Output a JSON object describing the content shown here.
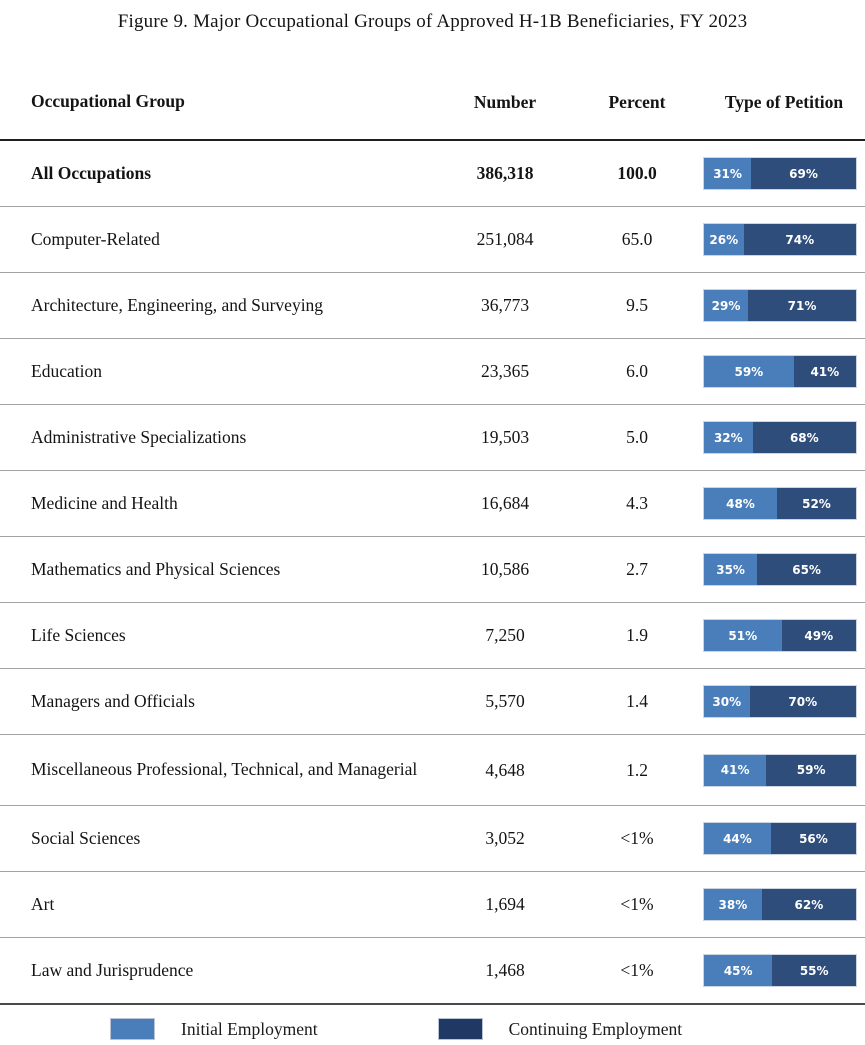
{
  "title": "Figure 9. Major Occupational Groups of Approved H-1B Beneficiaries, FY 2023",
  "table": {
    "headers": {
      "group": "Occupational Group",
      "number": "Number",
      "percent": "Percent",
      "petition": "Type of Petition"
    },
    "rows": [
      {
        "group": "All Occupations",
        "number": "386,318",
        "percent": "100.0",
        "initial": 31,
        "continuing": 69,
        "initial_label": "31%",
        "continuing_label": "69%",
        "bold": true
      },
      {
        "group": "Computer-Related",
        "number": "251,084",
        "percent": "65.0",
        "initial": 26,
        "continuing": 74,
        "initial_label": "26%",
        "continuing_label": "74%",
        "bold": false
      },
      {
        "group": "Architecture, Engineering, and Surveying",
        "number": "36,773",
        "percent": "9.5",
        "initial": 29,
        "continuing": 71,
        "initial_label": "29%",
        "continuing_label": "71%",
        "bold": false
      },
      {
        "group": "Education",
        "number": "23,365",
        "percent": "6.0",
        "initial": 59,
        "continuing": 41,
        "initial_label": "59%",
        "continuing_label": "41%",
        "bold": false
      },
      {
        "group": "Administrative Specializations",
        "number": "19,503",
        "percent": "5.0",
        "initial": 32,
        "continuing": 68,
        "initial_label": "32%",
        "continuing_label": "68%",
        "bold": false
      },
      {
        "group": "Medicine and Health",
        "number": "16,684",
        "percent": "4.3",
        "initial": 48,
        "continuing": 52,
        "initial_label": "48%",
        "continuing_label": "52%",
        "bold": false
      },
      {
        "group": "Mathematics and Physical Sciences",
        "number": "10,586",
        "percent": "2.7",
        "initial": 35,
        "continuing": 65,
        "initial_label": "35%",
        "continuing_label": "65%",
        "bold": false
      },
      {
        "group": "Life Sciences",
        "number": "7,250",
        "percent": "1.9",
        "initial": 51,
        "continuing": 49,
        "initial_label": "51%",
        "continuing_label": "49%",
        "bold": false
      },
      {
        "group": "Managers and Officials",
        "number": "5,570",
        "percent": "1.4",
        "initial": 30,
        "continuing": 70,
        "initial_label": "30%",
        "continuing_label": "70%",
        "bold": false
      },
      {
        "group": "Miscellaneous Professional, Technical, and Managerial",
        "number": "4,648",
        "percent": "1.2",
        "initial": 41,
        "continuing": 59,
        "initial_label": "41%",
        "continuing_label": "59%",
        "bold": false,
        "tall": true
      },
      {
        "group": "Social Sciences",
        "number": "3,052",
        "percent": "<1%",
        "initial": 44,
        "continuing": 56,
        "initial_label": "44%",
        "continuing_label": "56%",
        "bold": false
      },
      {
        "group": "Art",
        "number": "1,694",
        "percent": "<1%",
        "initial": 38,
        "continuing": 62,
        "initial_label": "38%",
        "continuing_label": "62%",
        "bold": false
      },
      {
        "group": "Law and Jurisprudence",
        "number": "1,468",
        "percent": "<1%",
        "initial": 45,
        "continuing": 55,
        "initial_label": "45%",
        "continuing_label": "55%",
        "bold": false
      }
    ]
  },
  "legend": {
    "initial": "Initial Employment",
    "continuing": "Continuing Employment"
  },
  "colors": {
    "initial": "#4a7ebb",
    "continuing": "#2e4d7b",
    "legend_continuing": "#203864"
  },
  "chart_data": {
    "type": "bar",
    "subtype": "horizontal-stacked-100percent",
    "title": "Figure 9. Major Occupational Groups of Approved H-1B Beneficiaries, FY 2023",
    "categories": [
      "All Occupations",
      "Computer-Related",
      "Architecture, Engineering, and Surveying",
      "Education",
      "Administrative Specializations",
      "Medicine and Health",
      "Mathematics and Physical Sciences",
      "Life Sciences",
      "Managers and Officials",
      "Miscellaneous Professional, Technical, and Managerial",
      "Social Sciences",
      "Art",
      "Law and Jurisprudence"
    ],
    "numbers": [
      386318,
      251084,
      36773,
      23365,
      19503,
      16684,
      10586,
      7250,
      5570,
      4648,
      3052,
      1694,
      1468
    ],
    "percents_of_total": [
      "100.0",
      "65.0",
      "9.5",
      "6.0",
      "5.0",
      "4.3",
      "2.7",
      "1.9",
      "1.4",
      "1.2",
      "<1%",
      "<1%",
      "<1%"
    ],
    "series": [
      {
        "name": "Initial Employment",
        "values": [
          31,
          26,
          29,
          59,
          32,
          48,
          35,
          51,
          30,
          41,
          44,
          38,
          45
        ]
      },
      {
        "name": "Continuing Employment",
        "values": [
          69,
          74,
          71,
          41,
          68,
          52,
          65,
          49,
          70,
          59,
          56,
          62,
          55
        ]
      }
    ],
    "value_unit": "percent",
    "xlim": [
      0,
      100
    ],
    "legend_position": "bottom",
    "grid": false
  }
}
